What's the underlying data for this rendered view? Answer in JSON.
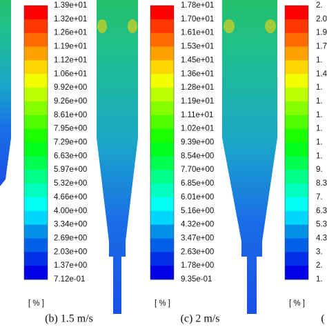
{
  "colorbars": [
    {
      "labels": [
        "1.39e+01",
        "1.32e+01",
        "1.26e+01",
        "1.19e+01",
        "1.12e+01",
        "1.06e+01",
        "9.92e+00",
        "9.26e+00",
        "8.61e+00",
        "7.95e+00",
        "7.29e+00",
        "6.63e+00",
        "5.97e+00",
        "5.32e+00",
        "4.66e+00",
        "4.00e+00",
        "3.34e+00",
        "2.69e+00",
        "2.03e+00",
        "1.37e+00",
        "7.12e-01"
      ],
      "unit": "[ % ]"
    },
    {
      "labels": [
        "1.78e+01",
        "1.70e+01",
        "1.61e+01",
        "1.53e+01",
        "1.45e+01",
        "1.36e+01",
        "1.28e+01",
        "1.19e+01",
        "1.11e+01",
        "1.02e+01",
        "9.39e+00",
        "8.54e+00",
        "7.70e+00",
        "6.85e+00",
        "6.01e+00",
        "5.16e+00",
        "4.32e+00",
        "3.47e+00",
        "2.63e+00",
        "1.78e+00",
        "9.35e-01"
      ],
      "unit": "[ % ]"
    },
    {
      "labels": [
        "2.",
        "2.0",
        "1.9",
        "1.7",
        "1.",
        "1.4",
        "1.",
        "1.",
        "1.",
        "1.",
        "1.",
        "1.",
        "9.",
        "8.3",
        "7.",
        "6.3",
        "5.3",
        "4.3",
        "3.",
        "2.",
        "1."
      ],
      "unit": "[ % ]"
    }
  ],
  "captions": [
    "(b) 1.5 m/s",
    "(c) 2 m/s",
    "("
  ]
}
